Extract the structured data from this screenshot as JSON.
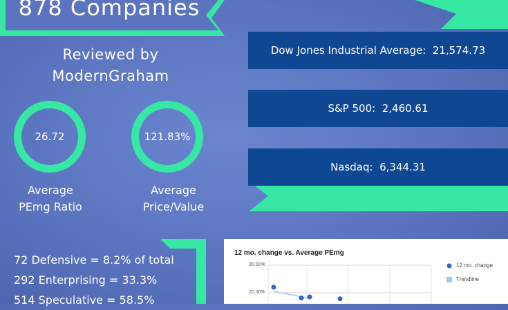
{
  "title": {
    "text": "878 Companies"
  },
  "subtitle": {
    "line1": "Reviewed by",
    "line2": "ModernGraham"
  },
  "metrics": [
    {
      "value": "26.72",
      "label_line1": "Average",
      "label_line2": "PEmg Ratio"
    },
    {
      "value": "121.83%",
      "label_line1": "Average",
      "label_line2": "Price/Value"
    }
  ],
  "indices": [
    {
      "text": "Dow Jones Industrial Average:  21,574.73"
    },
    {
      "text": "S&P 500:  2,460.61"
    },
    {
      "text": "Nasdaq:  6,344.31"
    }
  ],
  "stats": [
    {
      "text": "72 Defensive = 8.2% of total"
    },
    {
      "text": "292 Enterprising = 33.3%"
    },
    {
      "text": "514 Speculative = 58.5%"
    }
  ],
  "colors": {
    "accent": "#36e8a4",
    "index_box": "#0f4793",
    "background": "#5a74bf",
    "series": "#3366cc",
    "trendline": "#a9c3ea"
  },
  "chart_data": {
    "type": "scatter",
    "title": "12 mo. change vs. Average PEmg",
    "y_ticks": [
      "30.00%",
      "20.00%"
    ],
    "ylim_visible": [
      0.18,
      0.3
    ],
    "series": [
      {
        "name": "12 mo. change",
        "points": [
          {
            "x": 1,
            "y": 0.22
          },
          {
            "x": 2,
            "y": 0.181
          },
          {
            "x": 2.3,
            "y": 0.185
          },
          {
            "x": 3.4,
            "y": 0.178
          }
        ]
      },
      {
        "name": "Trendline",
        "points": []
      }
    ],
    "legend_position": "right"
  }
}
